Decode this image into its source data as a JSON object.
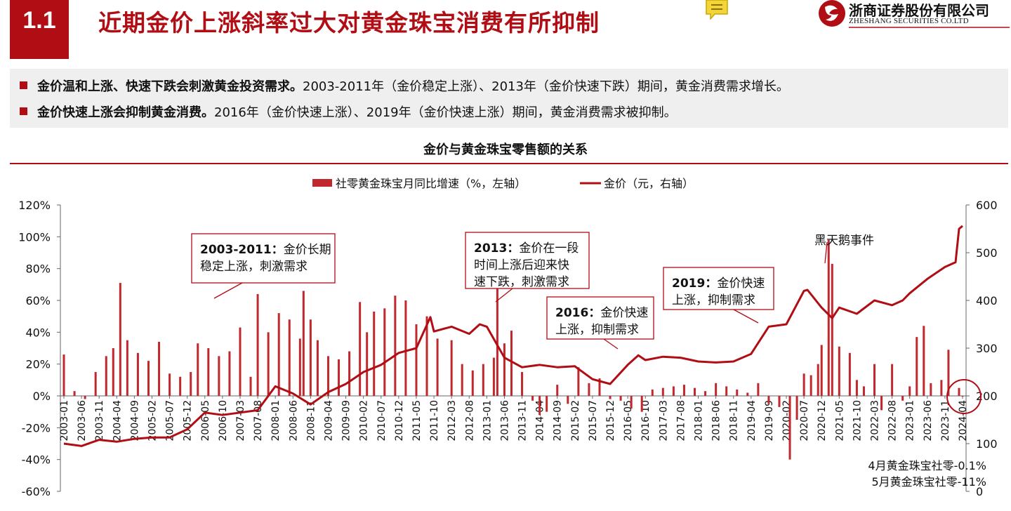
{
  "header": {
    "section_number": "1.1",
    "title": "近期金价上涨斜率过大对黄金珠宝消费有所抑制",
    "logo_cn": "浙商证券股份有限公司",
    "logo_en": "ZHESHANG SECURITIES CO.LTD",
    "icons": [
      "comment-icon",
      "zheshang-logo-icon"
    ]
  },
  "bullets": [
    {
      "bold": "金价温和上涨、快速下跌会刺激黄金投资需求。",
      "text": "2003-2011年（金价稳定上涨）、2013年（金价快速下跌）期间，黄金消费需求增长。"
    },
    {
      "bold": "金价快速上涨会抑制黄金消费。",
      "text": "2016年（金价快速上涨）、2019年（金价快速上涨）期间，黄金消费需求被抑制。"
    }
  ],
  "colors": {
    "accent": "#b00d14",
    "bar": "#c0282d",
    "line": "#b00d14",
    "panel": "#efefef"
  },
  "chart_data": {
    "type": "bar",
    "title": "金价与黄金珠宝零售额的关系",
    "legend_position": "top-center",
    "legend": [
      "社零黄金珠宝月同比增速（%，左轴）",
      "金价（元，右轴）"
    ],
    "y_left": {
      "min": -60,
      "max": 120,
      "step": 20,
      "unit": "%"
    },
    "y_right": {
      "min": 0,
      "max": 600,
      "step": 100
    },
    "x_tick_labels": [
      "2003-01",
      "2003-06",
      "2003-11",
      "2004-04",
      "2004-09",
      "2005-02",
      "2005-07",
      "2005-12",
      "2006-05",
      "2006-10",
      "2007-03",
      "2007-08",
      "2008-01",
      "2008-06",
      "2008-11",
      "2009-04",
      "2009-09",
      "2010-02",
      "2010-07",
      "2010-12",
      "2011-05",
      "2011-10",
      "2012-03",
      "2012-08",
      "2013-01",
      "2013-06",
      "2013-11",
      "2014-04",
      "2014-09",
      "2015-02",
      "2015-07",
      "2015-12",
      "2016-05",
      "2016-10",
      "2017-03",
      "2017-08",
      "2018-01",
      "2018-06",
      "2018-11",
      "2019-04",
      "2019-09",
      "2020-02",
      "2020-07",
      "2020-12",
      "2021-05",
      "2021-10",
      "2022-03",
      "2022-08",
      "2023-01",
      "2023-06",
      "2023-11",
      "2024-04"
    ],
    "series": [
      {
        "name": "社零黄金珠宝月同比增速（%，左轴）",
        "type": "bar",
        "axis": "left",
        "points": [
          [
            "2003-01",
            26
          ],
          [
            "2003-04",
            3
          ],
          [
            "2003-07",
            -2
          ],
          [
            "2003-10",
            15
          ],
          [
            "2004-01",
            25
          ],
          [
            "2004-03",
            30
          ],
          [
            "2004-05",
            71
          ],
          [
            "2004-07",
            35
          ],
          [
            "2004-10",
            27
          ],
          [
            "2005-01",
            22
          ],
          [
            "2005-04",
            34
          ],
          [
            "2005-07",
            14
          ],
          [
            "2005-10",
            12
          ],
          [
            "2006-01",
            15
          ],
          [
            "2006-03",
            33
          ],
          [
            "2006-06",
            30
          ],
          [
            "2006-09",
            25
          ],
          [
            "2006-12",
            28
          ],
          [
            "2007-03",
            43
          ],
          [
            "2007-06",
            12
          ],
          [
            "2007-08",
            64
          ],
          [
            "2007-11",
            40
          ],
          [
            "2008-02",
            52
          ],
          [
            "2008-05",
            48
          ],
          [
            "2008-08",
            36
          ],
          [
            "2008-09",
            66
          ],
          [
            "2008-11",
            48
          ],
          [
            "2009-01",
            35
          ],
          [
            "2009-04",
            25
          ],
          [
            "2009-07",
            23
          ],
          [
            "2009-10",
            28
          ],
          [
            "2010-01",
            59
          ],
          [
            "2010-03",
            40
          ],
          [
            "2010-05",
            53
          ],
          [
            "2010-08",
            55
          ],
          [
            "2010-11",
            63
          ],
          [
            "2011-02",
            60
          ],
          [
            "2011-05",
            45
          ],
          [
            "2011-08",
            50
          ],
          [
            "2011-11",
            36
          ],
          [
            "2012-03",
            35
          ],
          [
            "2012-06",
            20
          ],
          [
            "2012-09",
            16
          ],
          [
            "2012-12",
            20
          ],
          [
            "2013-03",
            24
          ],
          [
            "2013-04",
            72
          ],
          [
            "2013-06",
            33
          ],
          [
            "2013-08",
            41
          ],
          [
            "2013-11",
            15
          ],
          [
            "2014-02",
            -3
          ],
          [
            "2014-04",
            -12
          ],
          [
            "2014-06",
            -10
          ],
          [
            "2014-09",
            7
          ],
          [
            "2014-12",
            -5
          ],
          [
            "2015-03",
            18
          ],
          [
            "2015-06",
            8
          ],
          [
            "2015-09",
            11
          ],
          [
            "2015-12",
            -2
          ],
          [
            "2016-03",
            -3
          ],
          [
            "2016-06",
            -8
          ],
          [
            "2016-09",
            -10
          ],
          [
            "2016-12",
            4
          ],
          [
            "2017-03",
            5
          ],
          [
            "2017-06",
            6
          ],
          [
            "2017-09",
            7
          ],
          [
            "2017-12",
            5
          ],
          [
            "2018-03",
            3
          ],
          [
            "2018-06",
            8
          ],
          [
            "2018-09",
            6
          ],
          [
            "2018-12",
            4
          ],
          [
            "2019-03",
            2
          ],
          [
            "2019-06",
            8
          ],
          [
            "2019-09",
            -5
          ],
          [
            "2019-12",
            -7
          ],
          [
            "2020-03",
            -40
          ],
          [
            "2020-05",
            -15
          ],
          [
            "2020-07",
            14
          ],
          [
            "2020-09",
            13
          ],
          [
            "2020-11",
            20
          ],
          [
            "2020-12",
            32
          ],
          [
            "2021-02",
            98
          ],
          [
            "2021-03",
            83
          ],
          [
            "2021-05",
            31
          ],
          [
            "2021-08",
            27
          ],
          [
            "2021-10",
            10
          ],
          [
            "2021-12",
            6
          ],
          [
            "2022-03",
            20
          ],
          [
            "2022-05",
            -9
          ],
          [
            "2022-08",
            20
          ],
          [
            "2022-11",
            -3
          ],
          [
            "2023-01",
            6
          ],
          [
            "2023-03",
            37
          ],
          [
            "2023-05",
            44
          ],
          [
            "2023-07",
            8
          ],
          [
            "2023-10",
            10
          ],
          [
            "2023-12",
            29
          ],
          [
            "2024-03",
            5
          ],
          [
            "2024-04",
            -0.1
          ]
        ]
      },
      {
        "name": "金价（元，右轴）",
        "type": "line",
        "axis": "right",
        "points": [
          [
            "2003-01",
            100
          ],
          [
            "2003-06",
            95
          ],
          [
            "2003-11",
            108
          ],
          [
            "2004-04",
            104
          ],
          [
            "2004-09",
            110
          ],
          [
            "2005-02",
            113
          ],
          [
            "2005-07",
            113
          ],
          [
            "2005-12",
            130
          ],
          [
            "2006-05",
            165
          ],
          [
            "2006-10",
            160
          ],
          [
            "2007-03",
            165
          ],
          [
            "2007-08",
            170
          ],
          [
            "2008-01",
            220
          ],
          [
            "2008-06",
            205
          ],
          [
            "2008-11",
            182
          ],
          [
            "2009-04",
            208
          ],
          [
            "2009-09",
            225
          ],
          [
            "2010-02",
            250
          ],
          [
            "2010-07",
            265
          ],
          [
            "2010-12",
            290
          ],
          [
            "2011-05",
            300
          ],
          [
            "2011-09",
            365
          ],
          [
            "2011-10",
            335
          ],
          [
            "2012-03",
            345
          ],
          [
            "2012-08",
            330
          ],
          [
            "2012-11",
            350
          ],
          [
            "2013-01",
            345
          ],
          [
            "2013-06",
            280
          ],
          [
            "2013-11",
            260
          ],
          [
            "2014-04",
            265
          ],
          [
            "2014-09",
            260
          ],
          [
            "2015-02",
            262
          ],
          [
            "2015-07",
            235
          ],
          [
            "2015-12",
            225
          ],
          [
            "2016-05",
            265
          ],
          [
            "2016-08",
            285
          ],
          [
            "2016-10",
            275
          ],
          [
            "2017-03",
            282
          ],
          [
            "2017-08",
            280
          ],
          [
            "2018-01",
            272
          ],
          [
            "2018-06",
            270
          ],
          [
            "2018-11",
            272
          ],
          [
            "2019-04",
            288
          ],
          [
            "2019-09",
            345
          ],
          [
            "2020-02",
            350
          ],
          [
            "2020-07",
            420
          ],
          [
            "2020-08",
            422
          ],
          [
            "2020-12",
            385
          ],
          [
            "2021-03",
            363
          ],
          [
            "2021-05",
            385
          ],
          [
            "2021-10",
            372
          ],
          [
            "2022-03",
            400
          ],
          [
            "2022-08",
            390
          ],
          [
            "2022-11",
            400
          ],
          [
            "2023-01",
            415
          ],
          [
            "2023-06",
            445
          ],
          [
            "2023-11",
            470
          ],
          [
            "2024-02",
            480
          ],
          [
            "2024-03",
            550
          ],
          [
            "2024-04",
            556
          ]
        ]
      }
    ],
    "annotations": [
      {
        "bold": "2003-2011",
        "lines": [
          "2003-2011：金价长期",
          "稳定上涨，刺激需求"
        ]
      },
      {
        "bold": "2013",
        "lines": [
          "2013：金价在一段",
          "时间上涨后迎来快",
          "速下跌，刺激需求"
        ]
      },
      {
        "bold": "2016",
        "lines": [
          "2016：金价快速",
          "上涨，抑制需求"
        ]
      },
      {
        "bold": "2019",
        "lines": [
          "2019：金价快速",
          "上涨，抑制需求"
        ]
      },
      {
        "bold": "",
        "lines": [
          "黑天鹅事件"
        ]
      }
    ],
    "notes": [
      "4月黄金珠宝社零-0.1%",
      "5月黄金珠宝社零-11%"
    ]
  }
}
